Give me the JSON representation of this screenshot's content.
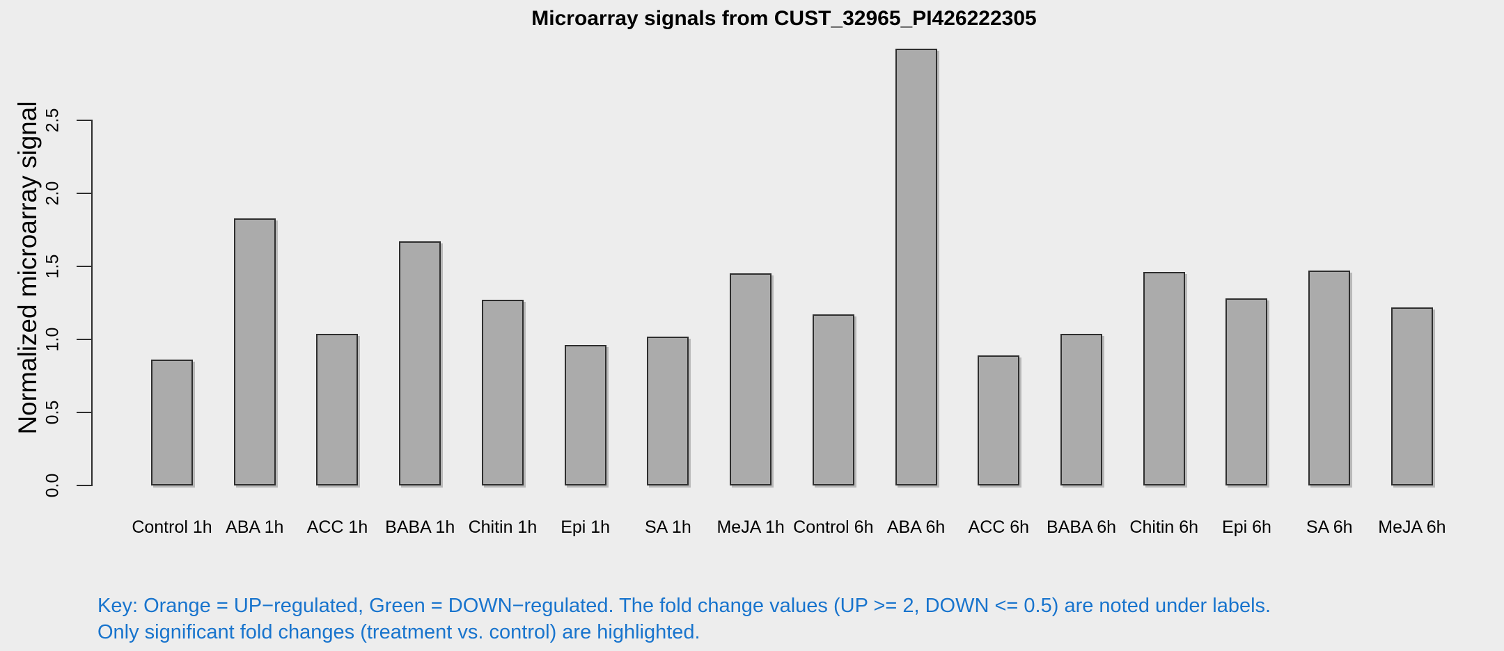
{
  "chart_data": {
    "type": "bar",
    "title": "Microarray signals from CUST_32965_PI426222305",
    "xlabel": "",
    "ylabel": "Normalized microarray signal",
    "categories": [
      "Control 1h",
      "ABA 1h",
      "ACC 1h",
      "BABA 1h",
      "Chitin 1h",
      "Epi 1h",
      "SA 1h",
      "MeJA 1h",
      "Control 6h",
      "ABA 6h",
      "ACC 6h",
      "BABA 6h",
      "Chitin 6h",
      "Epi 6h",
      "SA 6h",
      "MeJA 6h"
    ],
    "values": [
      0.86,
      1.83,
      1.04,
      1.67,
      1.27,
      0.96,
      1.02,
      1.45,
      1.17,
      2.99,
      0.89,
      1.04,
      1.46,
      1.28,
      1.47,
      1.22
    ],
    "y_ticks": [
      "0.0",
      "0.5",
      "1.0",
      "1.5",
      "2.0",
      "2.5"
    ],
    "y_tick_values": [
      0.0,
      0.5,
      1.0,
      1.5,
      2.0,
      2.5
    ],
    "ylim": [
      0,
      3.0
    ],
    "grid": false,
    "legend": "none",
    "bar_fill_color": "#ababab",
    "bar_border_color": "#2e2e2e",
    "background_color": "#ededed"
  },
  "footer": {
    "key_line_1": "Key: Orange = UP−regulated, Green = DOWN−regulated. The fold change values (UP >= 2, DOWN <= 0.5) are noted under labels.",
    "key_line_2": "Only significant fold changes (treatment vs. control) are highlighted.",
    "key_text_color": "#1874cd"
  }
}
